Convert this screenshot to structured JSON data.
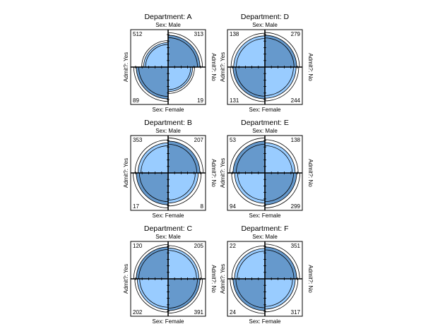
{
  "chart_data": {
    "type": "fourfold",
    "layout": {
      "rows": 3,
      "cols": 2,
      "order": "column-major"
    },
    "labels": {
      "top": "Sex: Male",
      "bottom": "Sex: Female",
      "left": "Admit?: Yes",
      "right": "Admit?: No"
    },
    "colors": {
      "high": "#6699cc",
      "low": "#99ccff",
      "outline": "#000000"
    },
    "panels": [
      {
        "title": "Department: A",
        "counts": {
          "male_yes": 512,
          "male_no": 313,
          "female_yes": 89,
          "female_no": 19
        }
      },
      {
        "title": "Department: B",
        "counts": {
          "male_yes": 353,
          "male_no": 207,
          "female_yes": 17,
          "female_no": 8
        }
      },
      {
        "title": "Department: C",
        "counts": {
          "male_yes": 120,
          "male_no": 205,
          "female_yes": 202,
          "female_no": 391
        }
      },
      {
        "title": "Department: D",
        "counts": {
          "male_yes": 138,
          "male_no": 279,
          "female_yes": 131,
          "female_no": 244
        }
      },
      {
        "title": "Department: E",
        "counts": {
          "male_yes": 53,
          "male_no": 138,
          "female_yes": 94,
          "female_no": 299
        }
      },
      {
        "title": "Department: F",
        "counts": {
          "male_yes": 22,
          "male_no": 351,
          "female_yes": 24,
          "female_no": 317
        }
      }
    ]
  }
}
